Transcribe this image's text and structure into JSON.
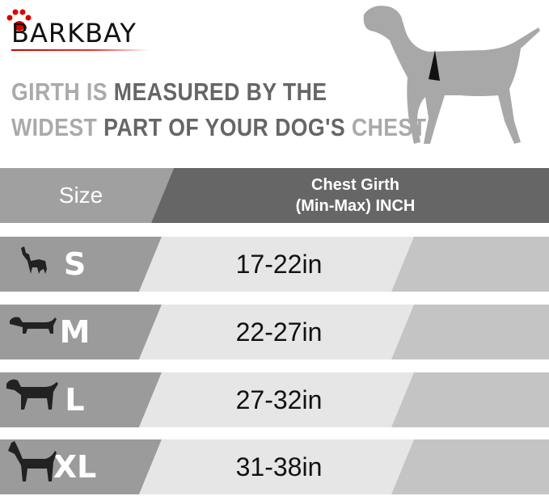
{
  "brand": {
    "logo_text": "BARKBAY"
  },
  "headline": {
    "line1": [
      {
        "text": "GIRTH IS ",
        "tone": "light"
      },
      {
        "text": "MEASURED BY THE",
        "tone": "dark"
      }
    ],
    "line2": [
      {
        "text": "WIDEST ",
        "tone": "light"
      },
      {
        "text": "PART OF YOUR DOG'S ",
        "tone": "dark"
      },
      {
        "text": "CHEST.",
        "tone": "light"
      }
    ]
  },
  "table": {
    "header": {
      "size": "Size",
      "girth_line1": "Chest Girth",
      "girth_line2": "(Min-Max)  INCH"
    },
    "rows": [
      {
        "size": "S",
        "girth": "17-22in",
        "icon": "chihuahua-icon"
      },
      {
        "size": "M",
        "girth": "22-27in",
        "icon": "dachshund-icon"
      },
      {
        "size": "L",
        "girth": "27-32in",
        "icon": "labrador-icon"
      },
      {
        "size": "XL",
        "girth": "31-38in",
        "icon": "great-dane-icon"
      }
    ]
  },
  "colors": {
    "accent": "#d00000",
    "header_left": "#a0a0a0",
    "header_right": "#666666",
    "size_cell": "#9b9b9b",
    "value_cell": "#e6e6e6",
    "icon_cell": "#c4c4c4"
  }
}
